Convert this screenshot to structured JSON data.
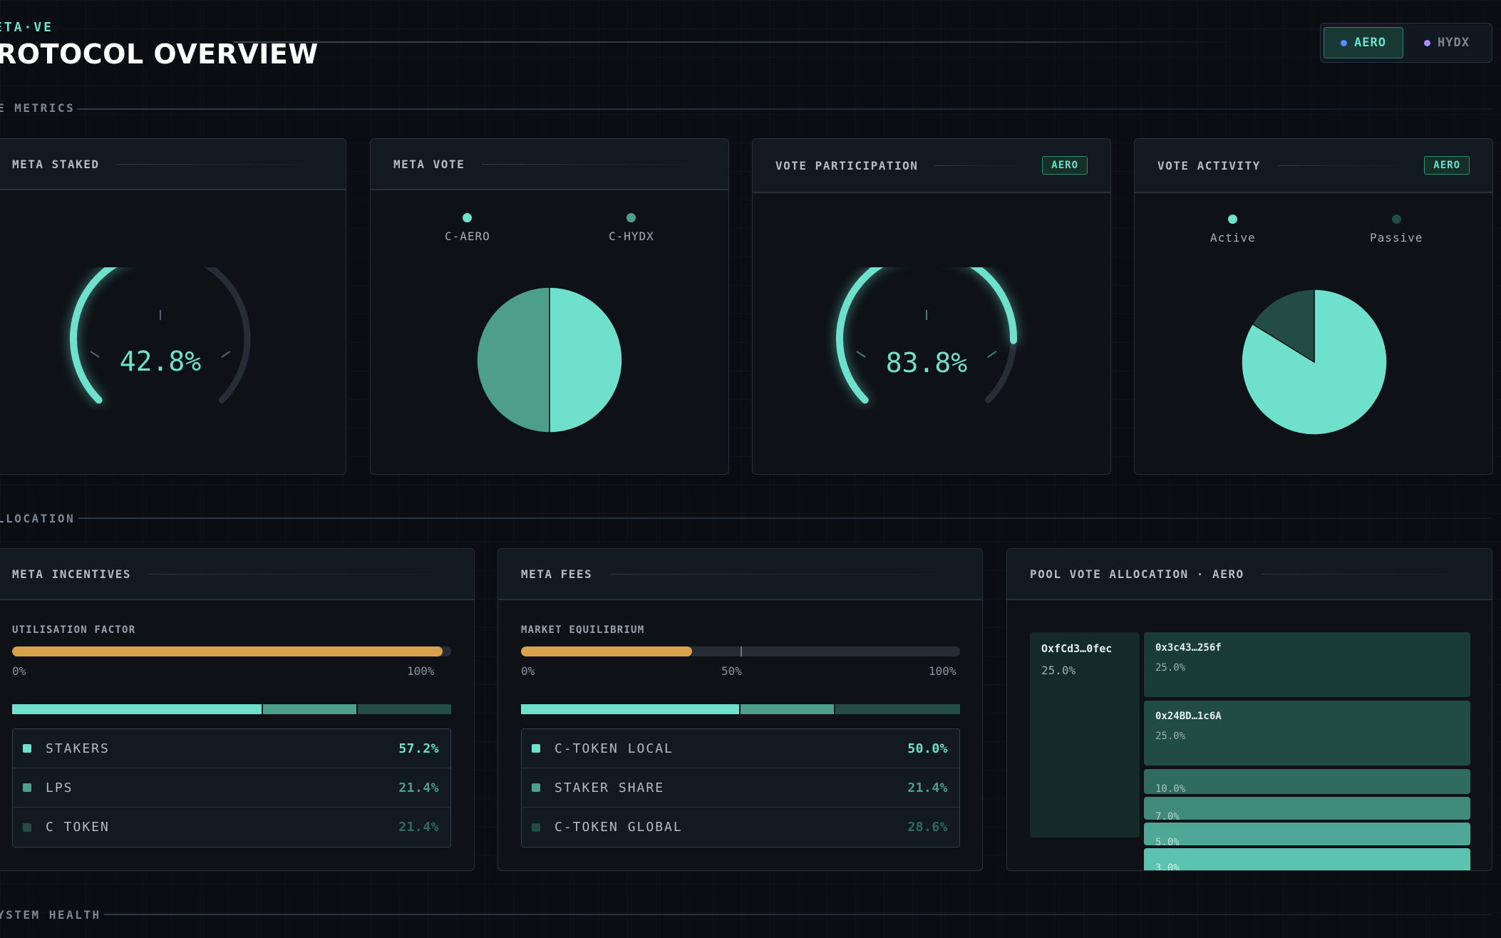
{
  "header": {
    "eyebrow": "ETA·VE",
    "title": "ROTOCOL OVERVIEW",
    "toggle": [
      {
        "label": "AERO",
        "active": true,
        "dot_color": "#5b8cff"
      },
      {
        "label": "HYDX",
        "active": false,
        "dot_color": "#b18cff"
      }
    ]
  },
  "sections": {
    "metrics": "E METRICS",
    "allocation": "LLOCATION",
    "health": "YSTEM HEALTH"
  },
  "cards": {
    "meta_staked": {
      "title": "META STAKED",
      "value_text": "42.8%",
      "value": 42.8
    },
    "meta_vote": {
      "title": "META VOTE",
      "legend": [
        {
          "label": "C-AERO",
          "color": "#6ee0cb",
          "value": 50
        },
        {
          "label": "C-HYDX",
          "color": "#4e9e8c",
          "value": 50
        }
      ]
    },
    "vote_participation": {
      "title": "VOTE PARTICIPATION",
      "badge": "AERO",
      "value_text": "83.8%",
      "value": 83.8
    },
    "vote_activity": {
      "title": "VOTE ACTIVITY",
      "badge": "AERO",
      "legend": [
        {
          "label": "Active",
          "color": "#6ee0cb",
          "value": 83.8
        },
        {
          "label": "Passive",
          "color": "#234d44",
          "value": 16.2
        }
      ]
    },
    "meta_incentives": {
      "title": "META INCENTIVES",
      "bar_label": "UTILISATION FACTOR",
      "bar_value": 98,
      "ticks": [
        "0%",
        "100%"
      ],
      "rows": [
        {
          "name": "STAKERS",
          "pct": "57.2%",
          "value": 57.2,
          "color": "#6ee0cb"
        },
        {
          "name": "LPS",
          "pct": "21.4%",
          "value": 21.4,
          "color": "#4e9e8c"
        },
        {
          "name": "C TOKEN",
          "pct": "21.4%",
          "value": 21.4,
          "color": "#234d44"
        }
      ]
    },
    "meta_fees": {
      "title": "META FEES",
      "bar_label": "MARKET EQUILIBRIUM",
      "bar_value": 39,
      "ticks": [
        "0%",
        "50%",
        "100%"
      ],
      "rows": [
        {
          "name": "C-TOKEN LOCAL",
          "pct": "50.0%",
          "value": 50.0,
          "color": "#6ee0cb"
        },
        {
          "name": "STAKER SHARE",
          "pct": "21.4%",
          "value": 21.4,
          "color": "#4e9e8c"
        },
        {
          "name": "C-TOKEN GLOBAL",
          "pct": "28.6%",
          "value": 28.6,
          "color": "#234d44"
        }
      ]
    },
    "pool_vote": {
      "title": "POOL VOTE ALLOCATION · AERO",
      "tiles": [
        {
          "name": "OxfCd3…0fec",
          "pct": "25.0%"
        },
        {
          "name": "0x3c43…256f",
          "pct": "25.0%"
        },
        {
          "name": "0x24BD…1c6A",
          "pct": "25.0%"
        },
        {
          "name": "",
          "pct": "10.0%"
        },
        {
          "name": "",
          "pct": "7.0%"
        },
        {
          "name": "",
          "pct": "5.0%"
        },
        {
          "name": "",
          "pct": "3.0%"
        }
      ]
    }
  }
}
